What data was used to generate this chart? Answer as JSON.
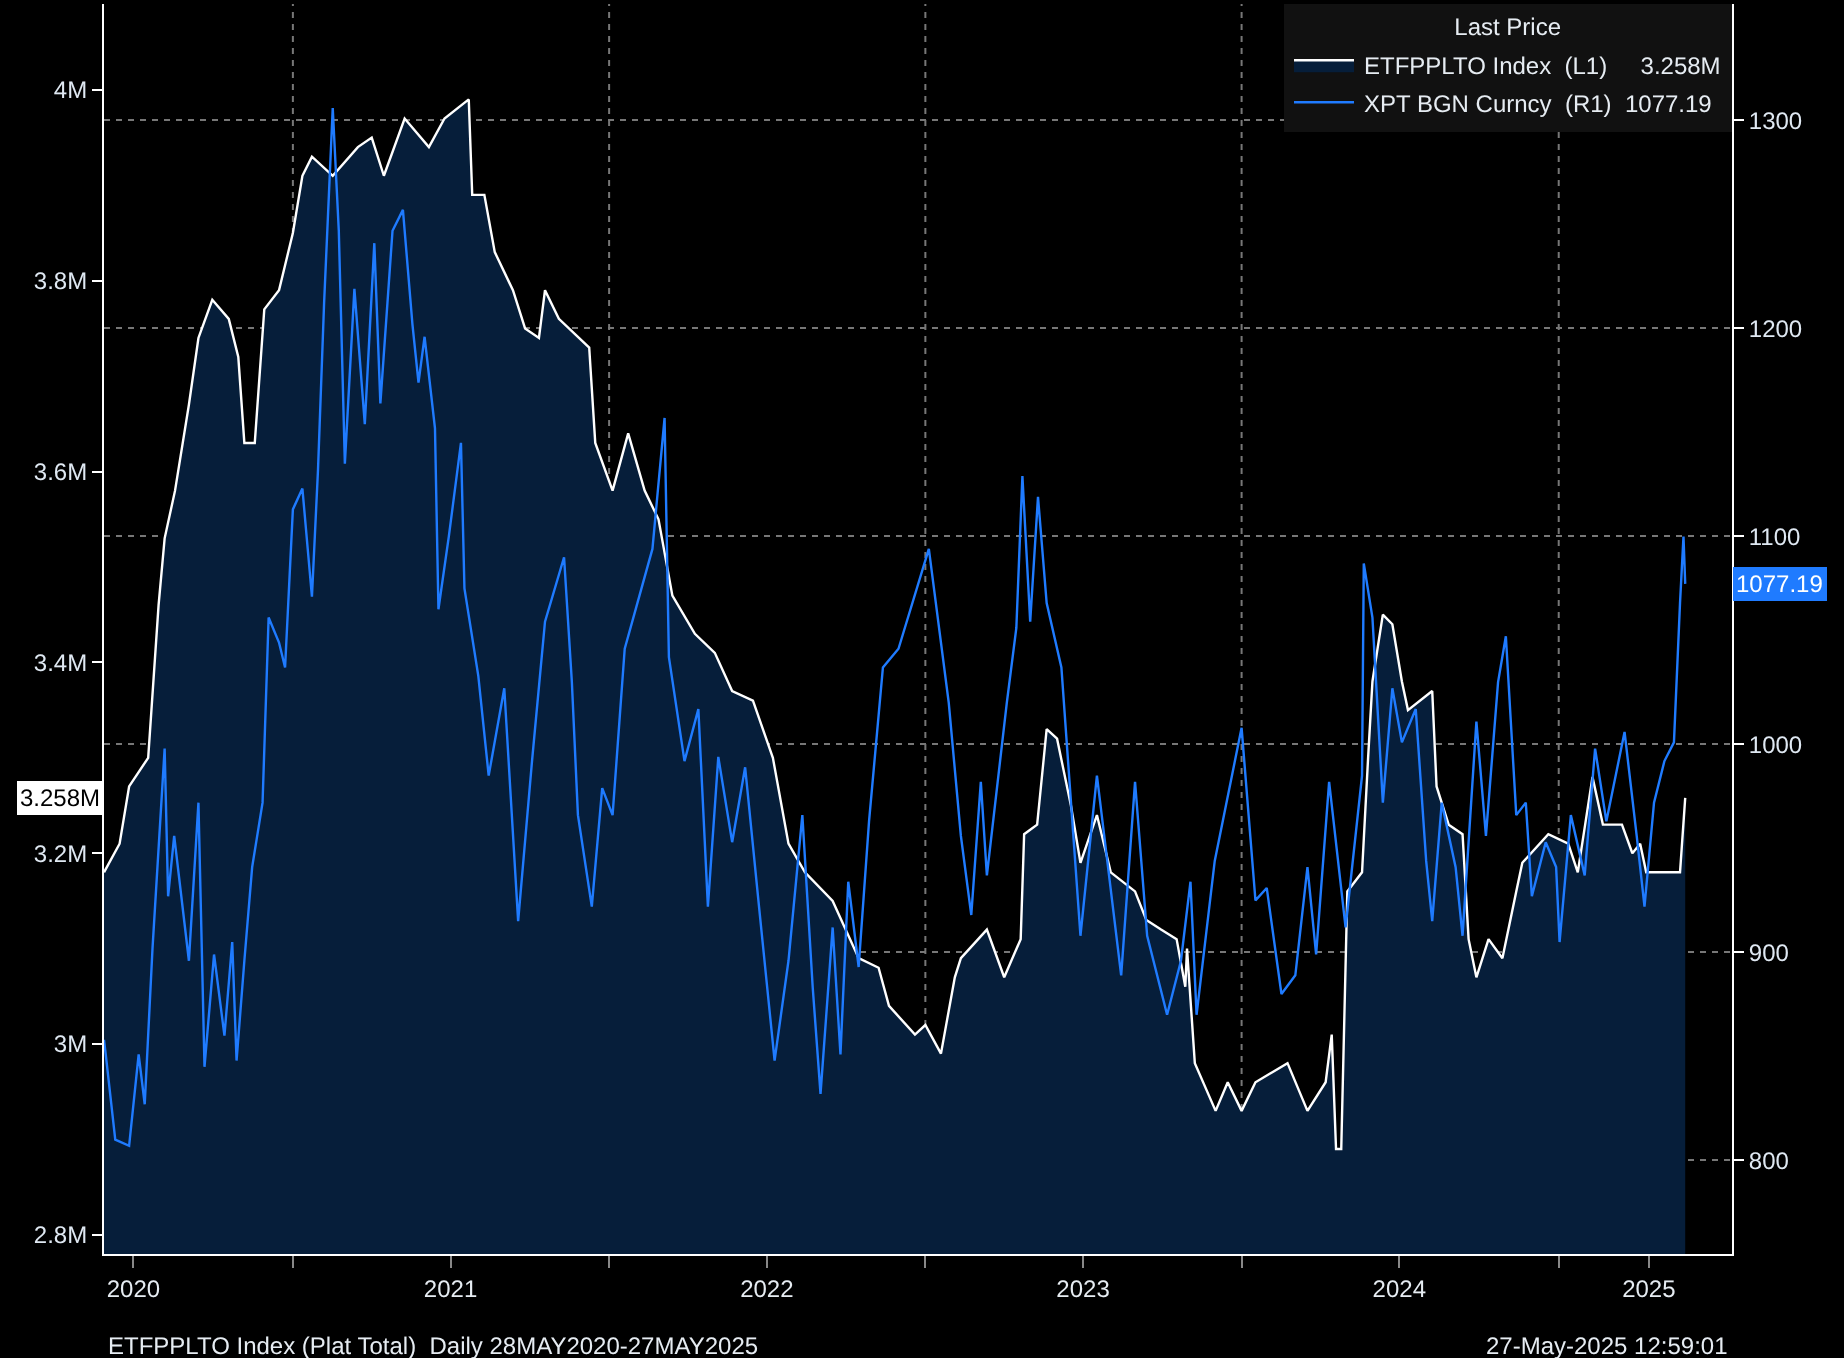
{
  "chart_data": {
    "type": "line",
    "legend_title": "Last Price",
    "legend": "top right",
    "grid": true,
    "xlim": [
      "2020-05-28",
      "2025-07-20"
    ],
    "xticks": [
      {
        "value": "2020-07-01",
        "label": "2020"
      },
      {
        "value": "2021-01-01",
        "label": null
      },
      {
        "value": "2021-07-02",
        "label": "2021"
      },
      {
        "value": "2022-01-01",
        "label": null
      },
      {
        "value": "2022-07-02",
        "label": "2022"
      },
      {
        "value": "2023-01-01",
        "label": null
      },
      {
        "value": "2023-07-02",
        "label": "2023"
      },
      {
        "value": "2024-01-01",
        "label": null
      },
      {
        "value": "2024-07-01",
        "label": "2024"
      },
      {
        "value": "2025-01-01",
        "label": null
      },
      {
        "value": "2025-04-15",
        "label": "2025"
      }
    ],
    "ylim": [
      2.78,
      4.09
    ],
    "yticks": [
      {
        "value": 2.8,
        "label": "2.8M"
      },
      {
        "value": 3.0,
        "label": "3M"
      },
      {
        "value": 3.2,
        "label": "3.2M"
      },
      {
        "value": 3.4,
        "label": "3.4M"
      },
      {
        "value": 3.6,
        "label": "3.6M"
      },
      {
        "value": 3.8,
        "label": "3.8M"
      },
      {
        "value": 4.0,
        "label": "4M"
      }
    ],
    "y2lim": [
      755,
      1356
    ],
    "y2ticks": [
      800,
      900,
      1000,
      1100,
      1200,
      1300
    ],
    "series": [
      {
        "name": "ETFPPLTO Index  (L1)     3.258M",
        "type": "area",
        "color": "#ffffff",
        "x": [
          "2020-05-28",
          "2020-06-15",
          "2020-06-26",
          "2020-07-18",
          "2020-07-30",
          "2020-08-06",
          "2020-08-18",
          "2020-09-03",
          "2020-09-14",
          "2020-09-30",
          "2020-10-19",
          "2020-10-30",
          "2020-11-06",
          "2020-11-18",
          "2020-11-29",
          "2020-12-16",
          "2021-01-01",
          "2021-01-12",
          "2021-01-23",
          "2021-02-16",
          "2021-03-17",
          "2021-04-02",
          "2021-04-16",
          "2021-05-10",
          "2021-06-07",
          "2021-06-25",
          "2021-07-23",
          "2021-07-27",
          "2021-08-10",
          "2021-08-22",
          "2021-09-12",
          "2021-09-26",
          "2021-10-12",
          "2021-10-19",
          "2021-11-04",
          "2021-12-09",
          "2021-12-16",
          "2022-01-05",
          "2022-01-23",
          "2022-02-11",
          "2022-02-27",
          "2022-03-15",
          "2022-04-10",
          "2022-05-03",
          "2022-05-23",
          "2022-06-16",
          "2022-07-09",
          "2022-07-27",
          "2022-08-15",
          "2022-09-16",
          "2022-10-16",
          "2022-11-08",
          "2022-11-20",
          "2022-12-20",
          "2023-01-01",
          "2023-01-19",
          "2023-02-04",
          "2023-02-11",
          "2023-03-13",
          "2023-04-02",
          "2023-04-21",
          "2023-04-25",
          "2023-05-10",
          "2023-05-21",
          "2023-06-02",
          "2023-06-18",
          "2023-06-29",
          "2023-07-18",
          "2023-08-03",
          "2023-08-31",
          "2023-09-13",
          "2023-09-30",
          "2023-10-18",
          "2023-10-28",
          "2023-10-30",
          "2023-11-08",
          "2023-12-02",
          "2023-12-16",
          "2024-01-01",
          "2024-01-17",
          "2024-02-23",
          "2024-03-17",
          "2024-04-07",
          "2024-04-14",
          "2024-04-19",
          "2024-04-25",
          "2024-05-02",
          "2024-05-19",
          "2024-05-26",
          "2024-05-31",
          "2024-06-12",
          "2024-06-23",
          "2024-07-04",
          "2024-07-11",
          "2024-08-08",
          "2024-08-13",
          "2024-08-27",
          "2024-09-12",
          "2024-09-19",
          "2024-09-28",
          "2024-10-12",
          "2024-10-28",
          "2024-11-13",
          "2024-11-20",
          "2024-12-20",
          "2025-01-12",
          "2025-01-23",
          "2025-02-09",
          "2025-02-21",
          "2025-03-15",
          "2025-03-27",
          "2025-04-05",
          "2025-04-12",
          "2025-05-21",
          "2025-05-27"
        ],
        "values": [
          3.18,
          3.21,
          3.27,
          3.3,
          3.46,
          3.53,
          3.58,
          3.67,
          3.74,
          3.78,
          3.76,
          3.72,
          3.63,
          3.63,
          3.77,
          3.79,
          3.85,
          3.91,
          3.93,
          3.91,
          3.94,
          3.95,
          3.91,
          3.97,
          3.94,
          3.97,
          3.99,
          3.89,
          3.89,
          3.83,
          3.79,
          3.75,
          3.74,
          3.79,
          3.76,
          3.73,
          3.63,
          3.58,
          3.64,
          3.58,
          3.55,
          3.47,
          3.43,
          3.41,
          3.37,
          3.36,
          3.3,
          3.21,
          3.18,
          3.15,
          3.09,
          3.08,
          3.04,
          3.01,
          3.02,
          2.99,
          3.07,
          3.09,
          3.12,
          3.07,
          3.11,
          3.22,
          3.23,
          3.33,
          3.32,
          3.25,
          3.19,
          3.24,
          3.18,
          3.16,
          3.13,
          3.12,
          3.11,
          3.06,
          3.1,
          2.98,
          2.93,
          2.96,
          2.93,
          2.96,
          2.98,
          2.93,
          2.96,
          3.01,
          2.89,
          2.89,
          3.16,
          3.18,
          3.3,
          3.38,
          3.45,
          3.44,
          3.38,
          3.35,
          3.37,
          3.27,
          3.23,
          3.22,
          3.11,
          3.07,
          3.11,
          3.09,
          3.16,
          3.19,
          3.22,
          3.21,
          3.18,
          3.28,
          3.23,
          3.23,
          3.2,
          3.21,
          3.18,
          3.18,
          3.258
        ]
      },
      {
        "name": "XPT BGN Curncy  (R1)  1077.19",
        "axis": "y2",
        "color": "#1f7bff",
        "x": [
          "2020-05-28",
          "2020-05-30",
          "2020-06-10",
          "2020-06-26",
          "2020-07-07",
          "2020-07-14",
          "2020-07-23",
          "2020-08-06",
          "2020-08-10",
          "2020-08-17",
          "2020-09-03",
          "2020-09-14",
          "2020-09-21",
          "2020-10-02",
          "2020-10-14",
          "2020-10-23",
          "2020-10-28",
          "2020-11-06",
          "2020-11-15",
          "2020-11-27",
          "2020-12-04",
          "2020-12-16",
          "2020-12-23",
          "2021-01-01",
          "2021-01-12",
          "2021-01-23",
          "2021-01-30",
          "2021-02-06",
          "2021-02-16",
          "2021-02-23",
          "2021-03-02",
          "2021-03-13",
          "2021-03-25",
          "2021-04-05",
          "2021-04-12",
          "2021-04-26",
          "2021-05-08",
          "2021-05-19",
          "2021-05-26",
          "2021-06-02",
          "2021-06-14",
          "2021-06-18",
          "2021-06-30",
          "2021-07-14",
          "2021-07-18",
          "2021-08-03",
          "2021-08-15",
          "2021-09-02",
          "2021-09-18",
          "2021-10-04",
          "2021-10-19",
          "2021-11-10",
          "2021-11-19",
          "2021-11-26",
          "2021-12-12",
          "2021-12-24",
          "2022-01-05",
          "2022-01-19",
          "2022-02-20",
          "2022-03-06",
          "2022-03-11",
          "2022-03-29",
          "2022-04-14",
          "2022-04-25",
          "2022-05-07",
          "2022-05-23",
          "2022-06-07",
          "2022-06-23",
          "2022-07-11",
          "2022-07-27",
          "2022-08-12",
          "2022-08-24",
          "2022-09-02",
          "2022-09-16",
          "2022-09-25",
          "2022-10-04",
          "2022-10-16",
          "2022-10-28",
          "2022-11-13",
          "2022-12-01",
          "2023-01-05",
          "2023-01-28",
          "2023-02-11",
          "2023-02-23",
          "2023-03-06",
          "2023-03-13",
          "2023-04-05",
          "2023-04-16",
          "2023-04-23",
          "2023-05-02",
          "2023-05-11",
          "2023-05-21",
          "2023-06-07",
          "2023-06-29",
          "2023-07-18",
          "2023-08-15",
          "2023-08-31",
          "2023-09-14",
          "2023-10-07",
          "2023-10-23",
          "2023-11-03",
          "2023-11-10",
          "2023-12-01",
          "2024-01-01",
          "2024-01-17",
          "2024-01-30",
          "2024-02-16",
          "2024-03-03",
          "2024-03-17",
          "2024-03-27",
          "2024-04-11",
          "2024-04-30",
          "2024-05-19",
          "2024-05-21",
          "2024-05-31",
          "2024-06-12",
          "2024-06-23",
          "2024-07-04",
          "2024-07-20",
          "2024-08-01",
          "2024-08-08",
          "2024-08-19",
          "2024-09-04",
          "2024-09-12",
          "2024-09-28",
          "2024-10-09",
          "2024-10-23",
          "2024-11-01",
          "2024-11-13",
          "2024-11-24",
          "2024-12-01",
          "2024-12-17",
          "2024-12-29",
          "2025-01-02",
          "2025-01-15",
          "2025-01-31",
          "2025-02-12",
          "2025-02-25",
          "2025-03-18",
          "2025-04-01",
          "2025-04-10",
          "2025-04-21",
          "2025-05-03",
          "2025-05-14",
          "2025-05-21",
          "2025-05-25",
          "2025-05-27"
        ],
        "values": [
          858,
          851,
          810,
          807,
          851,
          827,
          902,
          998,
          927,
          956,
          896,
          972,
          845,
          899,
          860,
          905,
          848,
          896,
          941,
          972,
          1061,
          1049,
          1037,
          1113,
          1123,
          1071,
          1132,
          1212,
          1306,
          1247,
          1135,
          1219,
          1154,
          1241,
          1164,
          1247,
          1257,
          1202,
          1174,
          1196,
          1152,
          1065,
          1100,
          1145,
          1075,
          1033,
          985,
          1027,
          915,
          992,
          1059,
          1090,
          1030,
          966,
          922,
          979,
          966,
          1046,
          1094,
          1157,
          1042,
          992,
          1017,
          922,
          994,
          953,
          989,
          922,
          848,
          896,
          966,
          883,
          832,
          912,
          851,
          934,
          893,
          963,
          1037,
          1046,
          1094,
          1020,
          956,
          918,
          982,
          937,
          1020,
          1056,
          1129,
          1059,
          1119,
          1068,
          1037,
          908,
          985,
          889,
          982,
          908,
          870,
          896,
          934,
          870,
          944,
          1008,
          925,
          931,
          880,
          889,
          941,
          899,
          982,
          912,
          985,
          1087,
          1061,
          972,
          1027,
          1001,
          1017,
          944,
          915,
          972,
          941,
          908,
          1011,
          956,
          1030,
          1052,
          966,
          972,
          927,
          953,
          941,
          905,
          966,
          937,
          998,
          963,
          1006,
          956,
          922,
          972,
          992,
          1001,
          1068,
          1100,
          1077.19
        ]
      }
    ],
    "annotations": [
      "3.258M",
      "1077.19",
      "ETFPPLTO Index (Plat Total)  Daily 28MAY2020-27MAY2025",
      "27-May-2025 12:59:01"
    ]
  }
}
